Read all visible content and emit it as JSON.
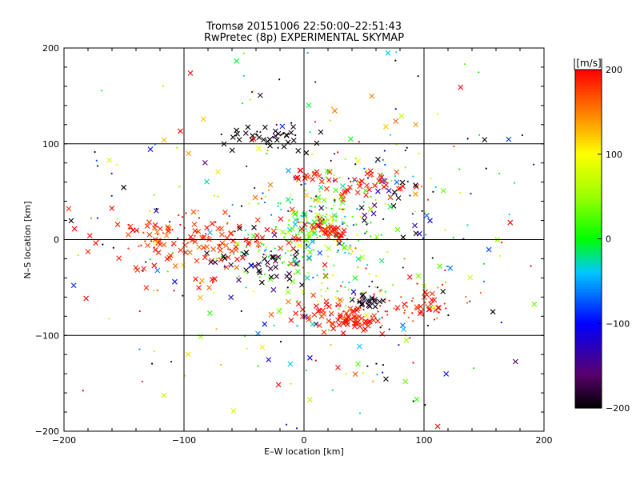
{
  "chart_data": {
    "type": "scatter",
    "title": "Tromsø 20151006 22:50:00–22:51:43",
    "subtitle": "RwPretec (8p) EXPERIMENTAL SKYMAP",
    "xlabel": "E–W location [km]",
    "ylabel": "N–S location [km]",
    "xlim": [
      -200,
      200
    ],
    "ylim": [
      -200,
      200
    ],
    "xticks": [
      "−200",
      "−100",
      "0",
      "100",
      "200"
    ],
    "yticks": [
      "−200",
      "−100",
      "0",
      "100",
      "200"
    ],
    "grid": true,
    "colorbar": {
      "unit": "[m/s]",
      "range": [
        -200,
        200
      ],
      "tick_values": [
        200,
        100,
        0,
        -100,
        -200
      ],
      "tick_labels": [
        "200",
        "100",
        "0",
        "−100",
        "−200"
      ]
    },
    "marker_legend": "none",
    "clusters": [
      {
        "x": 15,
        "y": 10,
        "sx": 22,
        "sy": 22,
        "v": 20,
        "vs": 40,
        "n": 170,
        "m": "."
      },
      {
        "x": 10,
        "y": 10,
        "sx": 18,
        "sy": 20,
        "v": 40,
        "vs": 60,
        "n": 50,
        "m": "x"
      },
      {
        "x": 20,
        "y": 12,
        "sx": 8,
        "sy": 6,
        "v": 190,
        "vs": 12,
        "n": 30,
        "m": "x"
      },
      {
        "x": 25,
        "y": -78,
        "sx": 15,
        "sy": 8,
        "v": 190,
        "vs": 12,
        "n": 45,
        "m": "x"
      },
      {
        "x": 45,
        "y": -85,
        "sx": 12,
        "sy": 7,
        "v": 190,
        "vs": 12,
        "n": 30,
        "m": "x"
      },
      {
        "x": 75,
        "y": -70,
        "sx": 25,
        "sy": 10,
        "v": 185,
        "vs": 15,
        "n": 55,
        "m": "."
      },
      {
        "x": 100,
        "y": -68,
        "sx": 10,
        "sy": 5,
        "v": 190,
        "vs": 10,
        "n": 20,
        "m": "x"
      },
      {
        "x": 55,
        "y": -65,
        "sx": 8,
        "sy": 4,
        "v": -195,
        "vs": 8,
        "n": 18,
        "m": "x"
      },
      {
        "x": 35,
        "y": -60,
        "sx": 15,
        "sy": 8,
        "v": 60,
        "vs": 60,
        "n": 22,
        "m": "."
      },
      {
        "x": -90,
        "y": -5,
        "sx": 45,
        "sy": 18,
        "v": 185,
        "vs": 18,
        "n": 110,
        "m": "x"
      },
      {
        "x": -110,
        "y": 5,
        "sx": 30,
        "sy": 12,
        "v": 185,
        "vs": 18,
        "n": 40,
        "m": "."
      },
      {
        "x": -40,
        "y": -25,
        "sx": 20,
        "sy": 8,
        "v": -190,
        "vs": 15,
        "n": 30,
        "m": "x"
      },
      {
        "x": -28,
        "y": -18,
        "sx": 14,
        "sy": 10,
        "v": 10,
        "vs": 50,
        "n": 30,
        "m": "."
      },
      {
        "x": -30,
        "y": 105,
        "sx": 20,
        "sy": 6,
        "v": -195,
        "vs": 8,
        "n": 30,
        "m": "x"
      },
      {
        "x": -20,
        "y": 110,
        "sx": 18,
        "sy": 6,
        "v": -195,
        "vs": 8,
        "n": 15,
        "m": "."
      },
      {
        "x": 5,
        "y": 65,
        "sx": 8,
        "sy": 4,
        "v": 190,
        "vs": 10,
        "n": 15,
        "m": "x"
      },
      {
        "x": 55,
        "y": 55,
        "sx": 22,
        "sy": 10,
        "v": 190,
        "vs": 12,
        "n": 35,
        "m": "x"
      },
      {
        "x": 60,
        "y": 60,
        "sx": 35,
        "sy": 20,
        "v": -60,
        "vs": 120,
        "n": 40,
        "m": "."
      },
      {
        "x": 70,
        "y": 35,
        "sx": 20,
        "sy": 15,
        "v": -100,
        "vs": 80,
        "n": 20,
        "m": "x"
      },
      {
        "x": 0,
        "y": 0,
        "sx": 110,
        "sy": 110,
        "v": 0,
        "vs": 160,
        "n": 280,
        "m": "."
      },
      {
        "x": 0,
        "y": 0,
        "sx": 110,
        "sy": 110,
        "v": 0,
        "vs": 160,
        "n": 150,
        "m": "x"
      }
    ]
  }
}
